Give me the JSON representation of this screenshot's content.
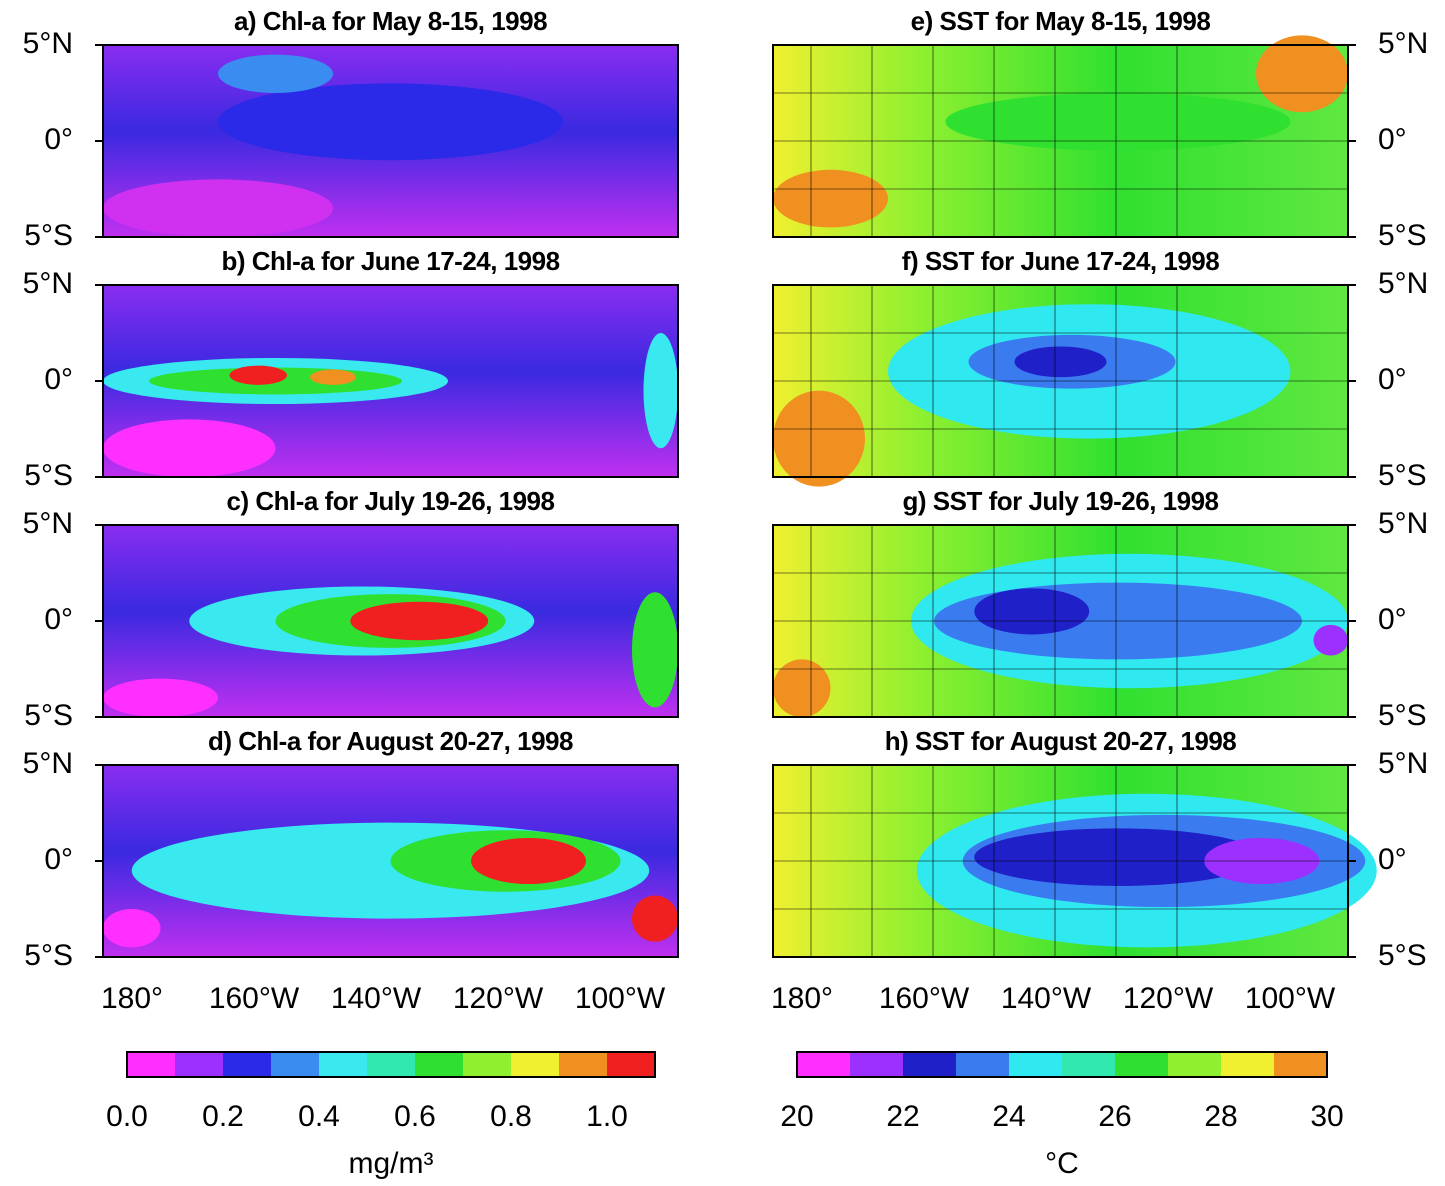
{
  "panels": [
    {
      "title": "a) Chl-a for May 8-15, 1998"
    },
    {
      "title": "b) Chl-a for June 17-24, 1998"
    },
    {
      "title": "c) Chl-a for July 19-26, 1998"
    },
    {
      "title": "d) Chl-a for August 20-27, 1998"
    },
    {
      "title": "e) SST for May 8-15, 1998"
    },
    {
      "title": "f) SST for June 17-24, 1998"
    },
    {
      "title": "g) SST for July 19-26, 1998"
    },
    {
      "title": "h) SST for August 20-27, 1998"
    }
  ],
  "lat_labels": [
    "5°N",
    "0°",
    "5°S"
  ],
  "lon_labels": [
    "180°",
    "160°W",
    "140°W",
    "120°W",
    "100°W"
  ],
  "colorbars": [
    {
      "unit": "mg/m³",
      "lim": [
        0,
        1.1
      ],
      "ticks": [
        {
          "value": 0,
          "label": "0.0"
        },
        {
          "value": 0.2,
          "label": "0.2"
        },
        {
          "value": 0.4,
          "label": "0.4"
        },
        {
          "value": 0.6,
          "label": "0.6"
        },
        {
          "value": 0.8,
          "label": "0.8"
        },
        {
          "value": 1,
          "label": "1.0"
        }
      ],
      "colors": [
        "#ff30ff",
        "#9b30ff",
        "#2a2ae8",
        "#3a8cf0",
        "#3ae8f0",
        "#30e8b0",
        "#30e030",
        "#90f030",
        "#f0f030",
        "#f09020",
        "#f02020"
      ]
    },
    {
      "unit": "°C",
      "lim": [
        20,
        30
      ],
      "ticks": [
        20,
        22,
        24,
        26,
        28,
        30
      ],
      "colors": [
        "#ff30ff",
        "#9b30ff",
        "#2020c8",
        "#3a7cf0",
        "#30e8f0",
        "#30e8b0",
        "#30e030",
        "#90f030",
        "#f0f030",
        "#f09020"
      ]
    }
  ]
}
